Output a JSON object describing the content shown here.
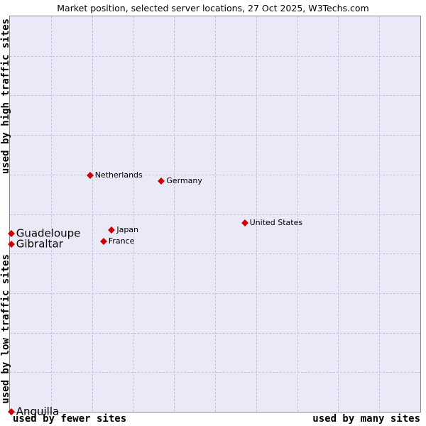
{
  "title": "Market position, selected server locations, 27 Oct 2025, W3Techs.com",
  "axis_labels": {
    "left_top": "used by high traffic sites",
    "left_bottom": "used by low traffic sites",
    "bottom_left": "used by fewer sites",
    "bottom_right": "used by many sites"
  },
  "colors": {
    "marker": "#cc0000",
    "plot_background": "#e9e9f7",
    "grid": "#c4c4d6",
    "border": "#888888"
  },
  "chart_data": {
    "type": "scatter",
    "title": "Market position, selected server locations, 27 Oct 2025, W3Techs.com",
    "x_axis": {
      "left_end": "used by fewer sites",
      "right_end": "used by many sites"
    },
    "y_axis": {
      "top_end": "used by high traffic sites",
      "bottom_end": "used by low traffic sites"
    },
    "grid": "dashed, 10x10 divisions",
    "legend_position": "none",
    "marker_shape": "diamond",
    "points": [
      {
        "label": "Netherlands",
        "x": 19.5,
        "y": 40.2,
        "large": false
      },
      {
        "label": "Germany",
        "x": 36.9,
        "y": 41.7,
        "large": false
      },
      {
        "label": "United States",
        "x": 57.2,
        "y": 52.2,
        "large": false
      },
      {
        "label": "Japan",
        "x": 24.8,
        "y": 54.0,
        "large": false
      },
      {
        "label": "France",
        "x": 22.8,
        "y": 56.9,
        "large": false
      },
      {
        "label": "Guadeloupe",
        "x": 0.3,
        "y": 54.9,
        "large": true
      },
      {
        "label": "Gibraltar",
        "x": 0.3,
        "y": 57.6,
        "large": true
      },
      {
        "label": "Anguilla",
        "x": 0.3,
        "y": 100.0,
        "large": true
      }
    ]
  }
}
